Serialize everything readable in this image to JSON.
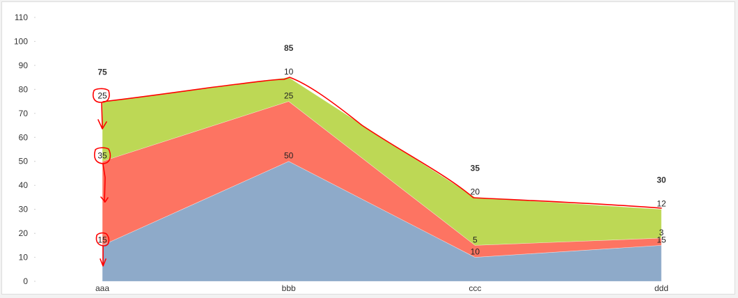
{
  "chart_data": {
    "type": "area",
    "stacked": true,
    "categories": [
      "aaa",
      "bbb",
      "ccc",
      "ddd"
    ],
    "series": [
      {
        "values": [
          15,
          50,
          10,
          15
        ],
        "color": "#8eaac9"
      },
      {
        "values": [
          35,
          25,
          5,
          3
        ],
        "color": "#fd7462"
      },
      {
        "values": [
          25,
          10,
          20,
          12
        ],
        "color": "#bdd855"
      }
    ],
    "totals": [
      75,
      85,
      35,
      30
    ],
    "ylim": [
      0,
      110
    ],
    "yticks": [
      0,
      10,
      20,
      30,
      40,
      50,
      60,
      70,
      80,
      90,
      100,
      110
    ],
    "grid": false,
    "legend": "none",
    "annotation_color": "#ff0000"
  }
}
